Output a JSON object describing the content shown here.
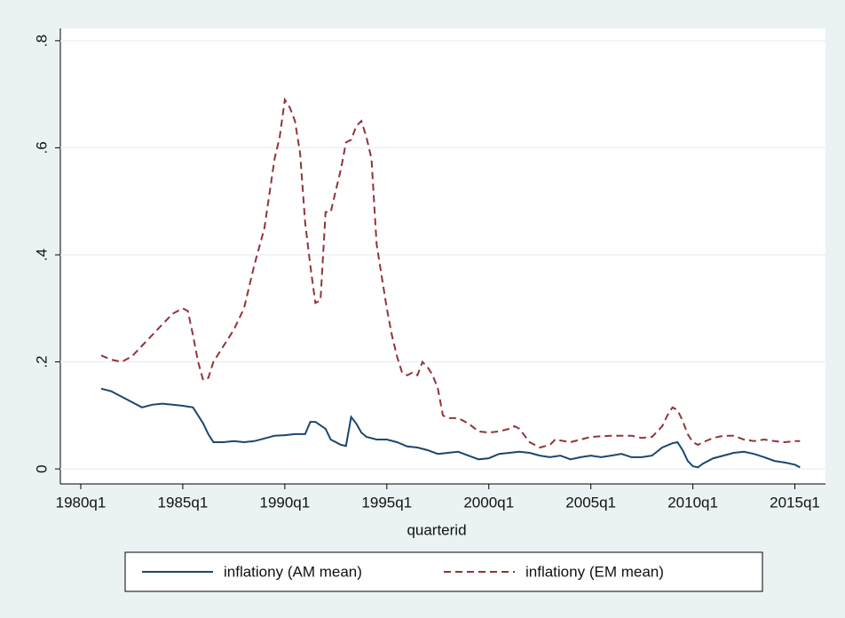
{
  "chart_data": {
    "type": "line",
    "x_label": "quarterid",
    "xlim": [
      76,
      226
    ],
    "ylim": [
      -0.028,
      0.823
    ],
    "xticks": [
      {
        "value": 80,
        "label": "1980q1"
      },
      {
        "value": 100,
        "label": "1985q1"
      },
      {
        "value": 120,
        "label": "1990q1"
      },
      {
        "value": 140,
        "label": "1995q1"
      },
      {
        "value": 160,
        "label": "2000q1"
      },
      {
        "value": 180,
        "label": "2005q1"
      },
      {
        "value": 200,
        "label": "2010q1"
      },
      {
        "value": 220,
        "label": "2015q1"
      }
    ],
    "yticks": [
      0,
      {
        "value": 0.2,
        "label": ".2"
      },
      {
        "value": 0.4,
        "label": ".4"
      },
      {
        "value": 0.6,
        "label": ".6"
      },
      {
        "value": 0.8,
        "label": ".8"
      }
    ],
    "grid": true,
    "legend": "bottom",
    "series": [
      {
        "name": "inflationy (AM mean)",
        "color": "#1a476f",
        "dash": false,
        "x": [
          84,
          86,
          88,
          90,
          92,
          94,
          96,
          98,
          100,
          102,
          104,
          105,
          106,
          108,
          110,
          112,
          114,
          116,
          118,
          120,
          122,
          124,
          125,
          126,
          128,
          129,
          131,
          132,
          133,
          134,
          135,
          136,
          138,
          140,
          142,
          144,
          146,
          148,
          150,
          152,
          154,
          156,
          158,
          160,
          162,
          164,
          166,
          168,
          170,
          172,
          174,
          176,
          178,
          180,
          182,
          184,
          186,
          188,
          190,
          192,
          194,
          196,
          197,
          198,
          199,
          200,
          201,
          202,
          204,
          206,
          208,
          210,
          212,
          214,
          216,
          218,
          220,
          221
        ],
        "values": [
          0.15,
          0.145,
          0.135,
          0.125,
          0.115,
          0.12,
          0.122,
          0.12,
          0.118,
          0.115,
          0.085,
          0.065,
          0.05,
          0.05,
          0.052,
          0.05,
          0.052,
          0.057,
          0.062,
          0.063,
          0.065,
          0.065,
          0.088,
          0.088,
          0.075,
          0.055,
          0.045,
          0.043,
          0.097,
          0.085,
          0.068,
          0.06,
          0.055,
          0.055,
          0.05,
          0.042,
          0.04,
          0.035,
          0.028,
          0.03,
          0.032,
          0.025,
          0.018,
          0.02,
          0.028,
          0.03,
          0.032,
          0.03,
          0.025,
          0.022,
          0.025,
          0.018,
          0.022,
          0.025,
          0.022,
          0.025,
          0.028,
          0.022,
          0.022,
          0.025,
          0.04,
          0.048,
          0.05,
          0.035,
          0.015,
          0.005,
          0.003,
          0.01,
          0.02,
          0.025,
          0.03,
          0.032,
          0.028,
          0.022,
          0.015,
          0.012,
          0.008,
          0.003
        ]
      },
      {
        "name": "inflationy (EM mean)",
        "color": "#90353b",
        "dash": true,
        "x": [
          84,
          86,
          88,
          90,
          92,
          94,
          96,
          98,
          100,
          101,
          102,
          103,
          104,
          105,
          106,
          108,
          110,
          112,
          114,
          116,
          118,
          119,
          120,
          121,
          122,
          123,
          124,
          125,
          126,
          127,
          128,
          129,
          130,
          131,
          132,
          133,
          134,
          135,
          136,
          137,
          138,
          139,
          140,
          141,
          142,
          143,
          144,
          145,
          146,
          147,
          148,
          149,
          150,
          151,
          152,
          154,
          156,
          158,
          160,
          162,
          164,
          165,
          166,
          168,
          170,
          172,
          173,
          176,
          178,
          180,
          184,
          188,
          190,
          192,
          194,
          195,
          196,
          197,
          198,
          199,
          200,
          201,
          202,
          204,
          206,
          208,
          210,
          212,
          214,
          216,
          218,
          220,
          221
        ],
        "values": [
          0.212,
          0.204,
          0.2,
          0.21,
          0.23,
          0.25,
          0.27,
          0.29,
          0.3,
          0.295,
          0.25,
          0.2,
          0.166,
          0.17,
          0.2,
          0.23,
          0.26,
          0.3,
          0.38,
          0.45,
          0.58,
          0.62,
          0.69,
          0.675,
          0.65,
          0.59,
          0.46,
          0.38,
          0.31,
          0.315,
          0.48,
          0.48,
          0.52,
          0.56,
          0.61,
          0.615,
          0.64,
          0.65,
          0.62,
          0.58,
          0.42,
          0.36,
          0.3,
          0.25,
          0.21,
          0.18,
          0.175,
          0.18,
          0.175,
          0.2,
          0.19,
          0.175,
          0.15,
          0.1,
          0.095,
          0.095,
          0.085,
          0.07,
          0.068,
          0.07,
          0.075,
          0.08,
          0.075,
          0.05,
          0.04,
          0.045,
          0.055,
          0.05,
          0.055,
          0.06,
          0.062,
          0.062,
          0.058,
          0.06,
          0.08,
          0.1,
          0.115,
          0.11,
          0.09,
          0.065,
          0.05,
          0.045,
          0.05,
          0.058,
          0.062,
          0.062,
          0.055,
          0.052,
          0.055,
          0.052,
          0.05,
          0.052,
          0.052
        ]
      }
    ]
  }
}
